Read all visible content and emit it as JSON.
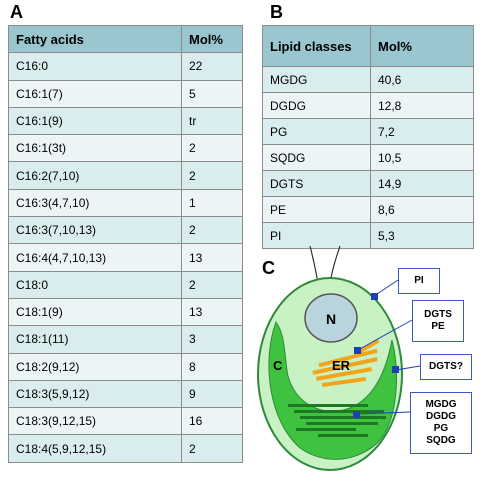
{
  "panel_a": {
    "label": "A",
    "headers": [
      "Fatty acids",
      "Mol%"
    ],
    "rows": [
      [
        "C16:0",
        "22"
      ],
      [
        "C16:1(7)",
        "5"
      ],
      [
        "C16:1(9)",
        "tr"
      ],
      [
        "C16:1(3t)",
        "2"
      ],
      [
        "C16:2(7,10)",
        "2"
      ],
      [
        "C16:3(4,7,10)",
        "1"
      ],
      [
        "C16:3(7,10,13)",
        "2"
      ],
      [
        "C16:4(4,7,10,13)",
        "13"
      ],
      [
        "C18:0",
        "2"
      ],
      [
        "C18:1(9)",
        "13"
      ],
      [
        "C18:1(11)",
        "3"
      ],
      [
        "C18:2(9,12)",
        "8"
      ],
      [
        "C18:3(5,9,12)",
        "9"
      ],
      [
        "C18:3(9,12,15)",
        "16"
      ],
      [
        "C18:4(5,9,12,15)",
        "2"
      ]
    ]
  },
  "panel_b": {
    "label": "B",
    "headers": [
      "Lipid classes",
      "Mol%"
    ],
    "rows": [
      [
        "MGDG",
        "40,6"
      ],
      [
        "DGDG",
        "12,8"
      ],
      [
        "PG",
        "7,2"
      ],
      [
        "SQDG",
        "10,5"
      ],
      [
        "DGTS",
        "14,9"
      ],
      [
        "PE",
        "8,6"
      ],
      [
        "PI",
        "5,3"
      ]
    ]
  },
  "panel_c": {
    "label": "C",
    "nucleus_label": "N",
    "chloroplast_label": "C",
    "er_label": "ER",
    "callouts": {
      "pi": [
        "PI"
      ],
      "er": [
        "DGTS",
        "PE"
      ],
      "envelope": [
        "DGTS?"
      ],
      "thylakoid": [
        "MGDG",
        "DGDG",
        "PG",
        "SQDG"
      ]
    },
    "colors": {
      "cell_fill": "#c9f2c4",
      "cell_stroke": "#2f8a3b",
      "nucleus_fill": "#b9d4dc",
      "chloroplast_fill": "#3fc23f",
      "thylakoid": "#1c7a22",
      "er": "#f2a51a",
      "marker": "#1f3fb5"
    }
  }
}
